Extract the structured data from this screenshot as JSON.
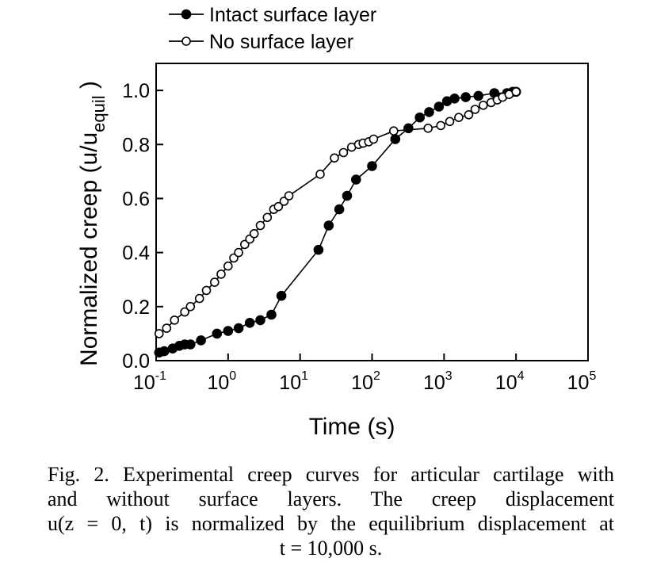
{
  "chart_data": {
    "type": "scatter",
    "xscale": "log",
    "xlim": [
      0.1,
      100000
    ],
    "ylim": [
      0.0,
      1.1
    ],
    "xlabel": "Time (s)",
    "ylabel": "Normalized creep (u/u",
    "ylabel_sub": "equil",
    "ylabel_close": ")",
    "x_ticks": [
      {
        "value": 0.1,
        "base": "10",
        "exp": "-1"
      },
      {
        "value": 1,
        "base": "10",
        "exp": "0"
      },
      {
        "value": 10,
        "base": "10",
        "exp": "1"
      },
      {
        "value": 100,
        "base": "10",
        "exp": "2"
      },
      {
        "value": 1000,
        "base": "10",
        "exp": "3"
      },
      {
        "value": 10000,
        "base": "10",
        "exp": "4"
      },
      {
        "value": 100000,
        "base": "10",
        "exp": "5"
      }
    ],
    "y_ticks": [
      {
        "value": 0.0,
        "label": "0.0"
      },
      {
        "value": 0.2,
        "label": "0.2"
      },
      {
        "value": 0.4,
        "label": "0.4"
      },
      {
        "value": 0.6,
        "label": "0.6"
      },
      {
        "value": 0.8,
        "label": "0.8"
      },
      {
        "value": 1.0,
        "label": "1.0"
      }
    ],
    "grid": false,
    "legend_position": "top-left, above plot",
    "series": [
      {
        "name": "Intact surface layer",
        "marker": "filled-circle",
        "color": "#000000",
        "x": [
          0.11,
          0.13,
          0.17,
          0.21,
          0.25,
          0.3,
          0.42,
          0.7,
          1.0,
          1.4,
          2.0,
          2.8,
          4.0,
          5.5,
          18,
          25,
          35,
          45,
          60,
          100,
          210,
          320,
          460,
          620,
          850,
          1100,
          1400,
          2000,
          3000,
          5000,
          7500,
          9000,
          10000
        ],
        "y": [
          0.03,
          0.035,
          0.045,
          0.055,
          0.06,
          0.06,
          0.075,
          0.1,
          0.11,
          0.12,
          0.14,
          0.15,
          0.17,
          0.24,
          0.41,
          0.5,
          0.56,
          0.61,
          0.67,
          0.72,
          0.82,
          0.86,
          0.9,
          0.92,
          0.94,
          0.96,
          0.97,
          0.975,
          0.98,
          0.99,
          0.99,
          0.995,
          0.995
        ]
      },
      {
        "name": "No surface layer",
        "marker": "open-circle",
        "color": "#000000",
        "x": [
          0.11,
          0.14,
          0.18,
          0.25,
          0.3,
          0.4,
          0.5,
          0.65,
          0.8,
          1.0,
          1.2,
          1.4,
          1.7,
          2.0,
          2.3,
          2.8,
          3.5,
          4.3,
          5.0,
          6.0,
          7.0,
          19,
          30,
          40,
          52,
          65,
          75,
          90,
          105,
          200,
          600,
          900,
          1200,
          1600,
          2200,
          2700,
          3500,
          4500,
          5500,
          6500,
          8000,
          10000
        ],
        "y": [
          0.1,
          0.12,
          0.15,
          0.18,
          0.2,
          0.23,
          0.26,
          0.29,
          0.32,
          0.35,
          0.38,
          0.4,
          0.43,
          0.45,
          0.47,
          0.5,
          0.53,
          0.56,
          0.57,
          0.59,
          0.61,
          0.69,
          0.75,
          0.77,
          0.79,
          0.8,
          0.805,
          0.81,
          0.82,
          0.85,
          0.86,
          0.87,
          0.885,
          0.9,
          0.91,
          0.93,
          0.945,
          0.955,
          0.965,
          0.975,
          0.985,
          0.995
        ]
      }
    ]
  },
  "caption": {
    "lines": [
      "Fig. 2.  Experimental creep curves for articular cartilage with",
      "and without surface layers. The creep displacement",
      "u(z = 0, t) is normalized by the equilibrium displacement at",
      "t = 10,000 s."
    ]
  }
}
